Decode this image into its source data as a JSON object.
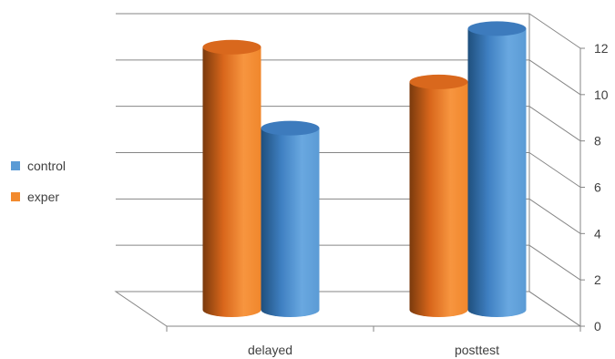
{
  "chart_data": {
    "type": "bar",
    "style": "3d-cylinder",
    "categories": [
      "delayed",
      "posttest"
    ],
    "series": [
      {
        "name": "exper",
        "color": "#f28a2e",
        "values": [
          11.5,
          10.0
        ]
      },
      {
        "name": "control",
        "color": "#5b9bd5",
        "values": [
          8.0,
          12.3
        ]
      }
    ],
    "yticks": [
      0,
      2,
      4,
      6,
      8,
      10,
      12
    ],
    "ylim": [
      0,
      12
    ],
    "y_axis_side": "right",
    "grid": true,
    "legend_position": "left",
    "legend_order": [
      "control",
      "exper"
    ],
    "title": "",
    "xlabel": "",
    "ylabel": ""
  }
}
